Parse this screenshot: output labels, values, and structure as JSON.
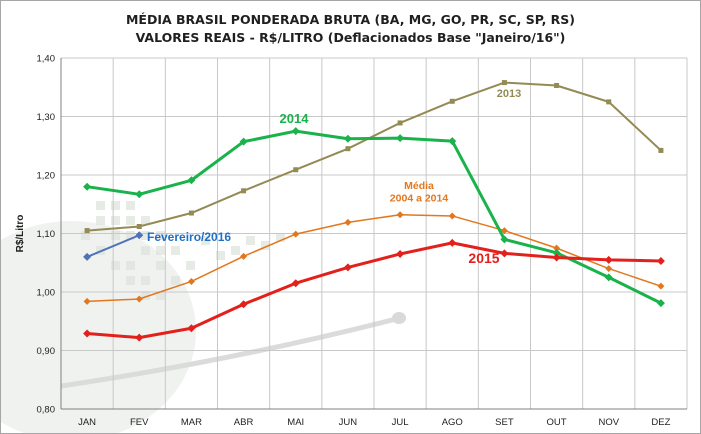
{
  "chart_data": {
    "type": "line",
    "title": "MÉDIA BRASIL PONDERADA BRUTA (BA, MG, GO, PR, SC, SP, RS)",
    "subtitle": "VALORES REAIS - R$/LITRO (Deflacionados Base \"Janeiro/16\")",
    "ylabel": "R$/Litro",
    "xlabel": "",
    "ylim": [
      0.8,
      1.4
    ],
    "yticks": [
      "0,80",
      "0,90",
      "1,00",
      "1,10",
      "1,20",
      "1,30",
      "1,40"
    ],
    "categories": [
      "JAN",
      "FEV",
      "MAR",
      "ABR",
      "MAI",
      "JUN",
      "JUL",
      "AGO",
      "SET",
      "OUT",
      "NOV",
      "DEZ"
    ],
    "grid": true,
    "legend": "none",
    "series": [
      {
        "name": "2013",
        "label_lines": [
          "2013"
        ],
        "color": "#948a54",
        "text_color": "#948a54",
        "values": [
          1.105,
          1.112,
          1.135,
          1.173,
          1.209,
          1.245,
          1.289,
          1.326,
          1.358,
          1.353,
          1.325,
          1.242
        ]
      },
      {
        "name": "Média 2004 a 2014",
        "label_lines": [
          "Média",
          "2004 a 2014"
        ],
        "color": "#e3771e",
        "text_color": "#e3771e",
        "values": [
          0.984,
          0.988,
          1.018,
          1.061,
          1.099,
          1.119,
          1.132,
          1.13,
          1.105,
          1.075,
          1.04,
          1.01
        ]
      },
      {
        "name": "2014",
        "label_lines": [
          "2014"
        ],
        "color": "#1ab24b",
        "text_color": "#1ab24b",
        "values": [
          1.18,
          1.167,
          1.191,
          1.257,
          1.275,
          1.262,
          1.263,
          1.258,
          1.09,
          1.067,
          1.025,
          0.981
        ]
      },
      {
        "name": "2015",
        "label_lines": [
          "2015"
        ],
        "color": "#e3201b",
        "text_color": "#e3201b",
        "values": [
          0.929,
          0.922,
          0.938,
          0.979,
          1.015,
          1.042,
          1.065,
          1.084,
          1.066,
          1.059,
          1.055,
          1.053
        ]
      },
      {
        "name": "Fevereiro/2016",
        "label_lines": [
          "Fevereiro/2016"
        ],
        "color": "#4f72b8",
        "text_color": "#1f6fc5",
        "values": [
          1.06,
          1.097,
          null,
          null,
          null,
          null,
          null,
          null,
          null,
          null,
          null,
          null
        ]
      }
    ]
  }
}
